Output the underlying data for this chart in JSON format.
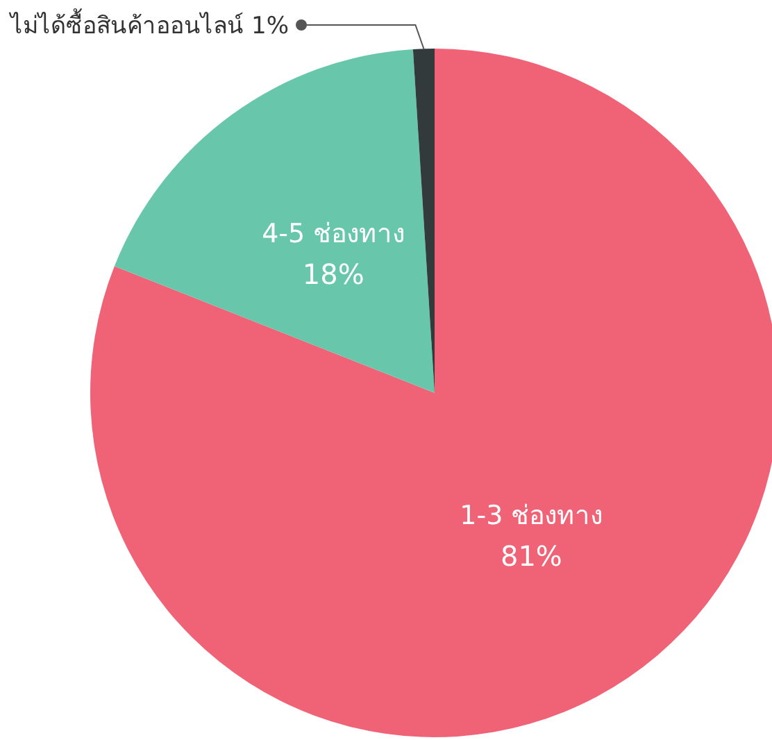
{
  "chart_data": {
    "type": "pie",
    "categories": [
      "1-3 ช่องทาง",
      "4-5 ช่องทาง",
      "ไม่ได้ซื้อสินค้าออนไลน์"
    ],
    "values": [
      81,
      18,
      1
    ],
    "value_labels": [
      "81%",
      "18%",
      "1%"
    ],
    "colors": [
      "#f06275",
      "#68c6aa",
      "#333a3c"
    ]
  }
}
